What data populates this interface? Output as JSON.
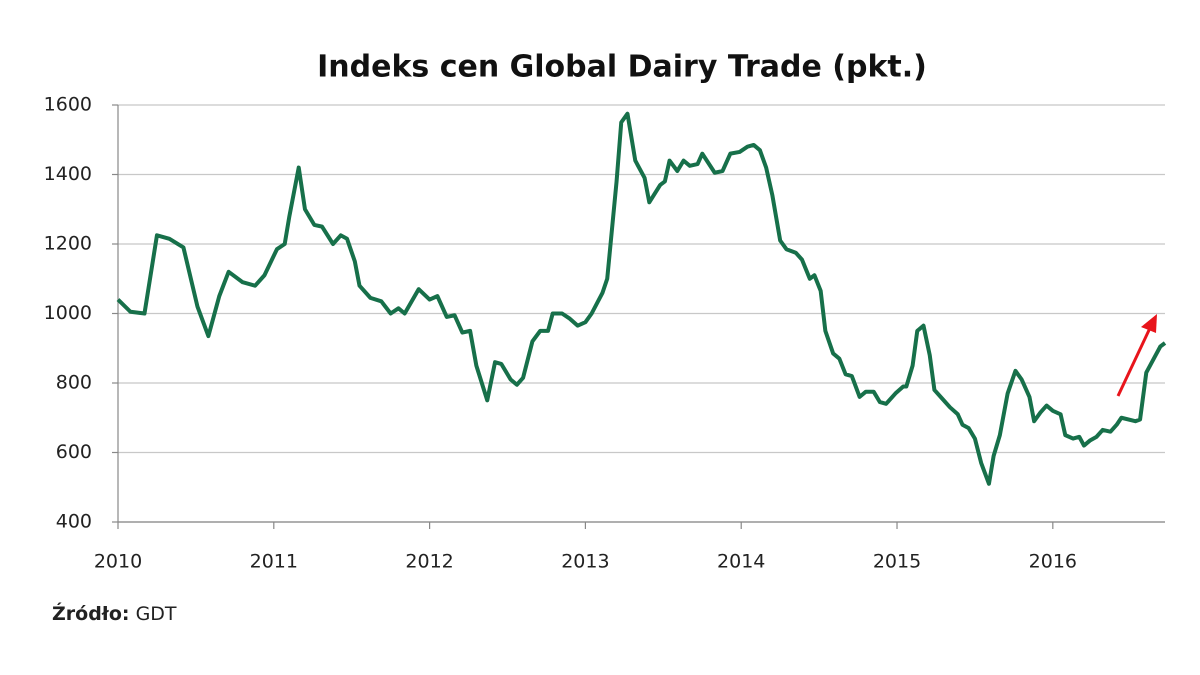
{
  "chart_data": {
    "type": "line",
    "title": "Indeks cen Global Dairy Trade (pkt.)",
    "x": [
      2010.0,
      2010.08,
      2010.17,
      2010.25,
      2010.33,
      2010.42,
      2010.51,
      2010.58,
      2010.65,
      2010.71,
      2010.8,
      2010.88,
      2010.94,
      2011.02,
      2011.07,
      2011.1,
      2011.16,
      2011.2,
      2011.26,
      2011.31,
      2011.38,
      2011.43,
      2011.47,
      2011.52,
      2011.55,
      2011.62,
      2011.69,
      2011.75,
      2011.8,
      2011.84,
      2011.93,
      2012.0,
      2012.05,
      2012.11,
      2012.16,
      2012.21,
      2012.26,
      2012.3,
      2012.37,
      2012.42,
      2012.46,
      2012.52,
      2012.56,
      2012.6,
      2012.66,
      2012.71,
      2012.76,
      2012.79,
      2012.85,
      2012.9,
      2012.95,
      2013.0,
      2013.04,
      2013.11,
      2013.14,
      2013.2,
      2013.23,
      2013.27,
      2013.32,
      2013.38,
      2013.41,
      2013.48,
      2013.51,
      2013.54,
      2013.59,
      2013.63,
      2013.67,
      2013.72,
      2013.75,
      2013.83,
      2013.88,
      2013.93,
      2013.99,
      2014.04,
      2014.08,
      2014.12,
      2014.16,
      2014.2,
      2014.25,
      2014.29,
      2014.35,
      2014.39,
      2014.44,
      2014.47,
      2014.51,
      2014.54,
      2014.59,
      2014.63,
      2014.67,
      2014.71,
      2014.76,
      2014.8,
      2014.85,
      2014.89,
      2014.93,
      2014.99,
      2015.04,
      2015.06,
      2015.1,
      2015.13,
      2015.17,
      2015.21,
      2015.24,
      2015.29,
      2015.34,
      2015.39,
      2015.42,
      2015.46,
      2015.5,
      2015.54,
      2015.59,
      2015.62,
      2015.66,
      2015.71,
      2015.76,
      2015.8,
      2015.85,
      2015.88,
      2015.92,
      2015.96,
      2016.0,
      2016.05,
      2016.08,
      2016.13,
      2016.17,
      2016.2,
      2016.24,
      2016.28,
      2016.32,
      2016.37,
      2016.41,
      2016.44,
      2016.53,
      2016.56,
      2016.6,
      2016.66,
      2016.69,
      2016.72
    ],
    "values": [
      1040,
      1005,
      1000,
      1225,
      1215,
      1190,
      1020,
      935,
      1050,
      1120,
      1090,
      1080,
      1110,
      1185,
      1200,
      1280,
      1420,
      1300,
      1255,
      1250,
      1200,
      1225,
      1215,
      1150,
      1080,
      1045,
      1035,
      1000,
      1015,
      1000,
      1070,
      1040,
      1050,
      990,
      995,
      945,
      950,
      850,
      750,
      860,
      855,
      810,
      795,
      815,
      920,
      950,
      950,
      1000,
      1000,
      985,
      965,
      975,
      1000,
      1060,
      1100,
      1380,
      1550,
      1575,
      1440,
      1390,
      1320,
      1370,
      1380,
      1440,
      1410,
      1440,
      1425,
      1430,
      1460,
      1405,
      1410,
      1460,
      1465,
      1480,
      1485,
      1470,
      1420,
      1340,
      1210,
      1185,
      1175,
      1155,
      1100,
      1110,
      1065,
      950,
      885,
      870,
      825,
      820,
      760,
      775,
      775,
      745,
      740,
      770,
      790,
      790,
      850,
      950,
      965,
      880,
      780,
      755,
      730,
      710,
      680,
      670,
      640,
      570,
      510,
      590,
      650,
      770,
      835,
      810,
      760,
      690,
      715,
      735,
      720,
      710,
      650,
      640,
      645,
      620,
      635,
      645,
      665,
      660,
      680,
      700,
      690,
      695,
      830,
      880,
      905,
      915
    ],
    "color": "#17704a",
    "xlim": [
      2010,
      2016.72
    ],
    "xticks": [
      2010,
      2011,
      2012,
      2013,
      2014,
      2015,
      2016
    ],
    "ylim": [
      400,
      1600
    ],
    "yticks": [
      400,
      600,
      800,
      1000,
      1200,
      1400,
      1600
    ],
    "grid": true,
    "source_label": "Źródło:",
    "source": "GDT"
  }
}
